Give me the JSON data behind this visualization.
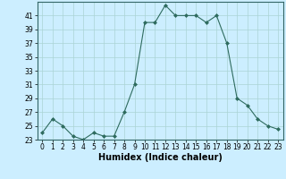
{
  "x": [
    0,
    1,
    2,
    3,
    4,
    5,
    6,
    7,
    8,
    9,
    10,
    11,
    12,
    13,
    14,
    15,
    16,
    17,
    18,
    19,
    20,
    21,
    22,
    23
  ],
  "y": [
    24.0,
    26.0,
    25.0,
    23.5,
    23.0,
    24.0,
    23.5,
    23.5,
    27.0,
    31.0,
    40.0,
    40.0,
    42.5,
    41.0,
    41.0,
    41.0,
    40.0,
    41.0,
    37.0,
    29.0,
    28.0,
    26.0,
    25.0,
    24.5
  ],
  "xlabel": "Humidex (Indice chaleur)",
  "ylim": [
    23,
    43
  ],
  "xlim": [
    -0.5,
    23.5
  ],
  "yticks": [
    23,
    25,
    27,
    29,
    31,
    33,
    35,
    37,
    39,
    41
  ],
  "xticks": [
    0,
    1,
    2,
    3,
    4,
    5,
    6,
    7,
    8,
    9,
    10,
    11,
    12,
    13,
    14,
    15,
    16,
    17,
    18,
    19,
    20,
    21,
    22,
    23
  ],
  "line_color": "#2e6b5e",
  "marker": "D",
  "marker_size": 2.0,
  "bg_color": "#cceeff",
  "grid_color": "#aad4d4",
  "tick_fontsize": 5.5,
  "xlabel_fontsize": 7.0,
  "linewidth": 0.8
}
